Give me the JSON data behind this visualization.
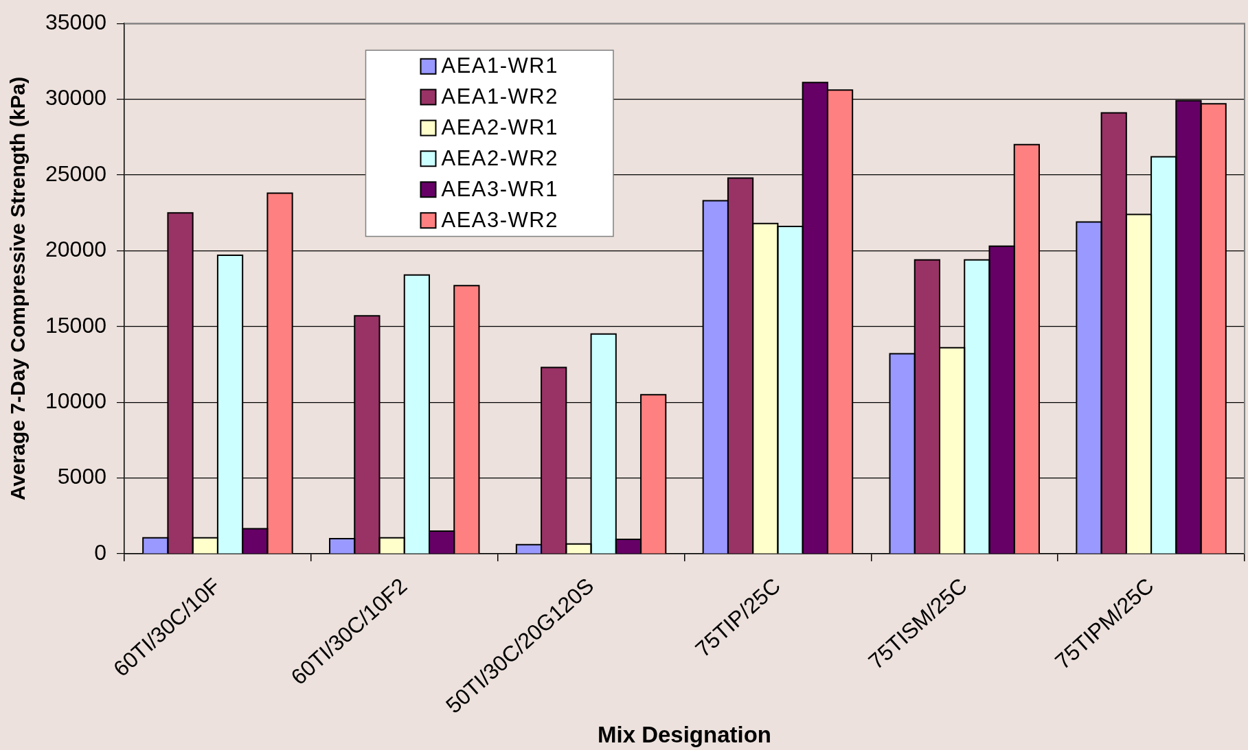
{
  "chart_data": {
    "type": "bar",
    "xlabel": "Mix Designation",
    "ylabel": "Average 7-Day Compressive Strength (kPa)",
    "categories": [
      "60TI/30C/10F",
      "60TI/30C/10F2",
      "50TI/30C/20G120S",
      "75TIP/25C",
      "75TISM/25C",
      "75TIPM/25C"
    ],
    "series": [
      {
        "name": "AEA1-WR1",
        "color": "#9999ff",
        "values": [
          1050,
          1000,
          600,
          23300,
          13200,
          21900
        ]
      },
      {
        "name": "AEA1-WR2",
        "color": "#993366",
        "values": [
          22500,
          15700,
          12300,
          24800,
          19400,
          29100
        ]
      },
      {
        "name": "AEA2-WR1",
        "color": "#ffffcc",
        "values": [
          1050,
          1050,
          650,
          21800,
          13600,
          22400
        ]
      },
      {
        "name": "AEA2-WR2",
        "color": "#ccffff",
        "values": [
          19700,
          18400,
          14500,
          21600,
          19400,
          26200
        ]
      },
      {
        "name": "AEA3-WR1",
        "color": "#660066",
        "values": [
          1650,
          1500,
          950,
          31100,
          20300,
          29900
        ]
      },
      {
        "name": "AEA3-WR2",
        "color": "#ff8080",
        "values": [
          23800,
          17700,
          10500,
          30600,
          27000,
          29700
        ]
      }
    ],
    "ylim": [
      0,
      35000
    ],
    "yticks": [
      0,
      5000,
      10000,
      15000,
      20000,
      25000,
      30000,
      35000
    ],
    "grid": "y",
    "legend": "top left"
  }
}
